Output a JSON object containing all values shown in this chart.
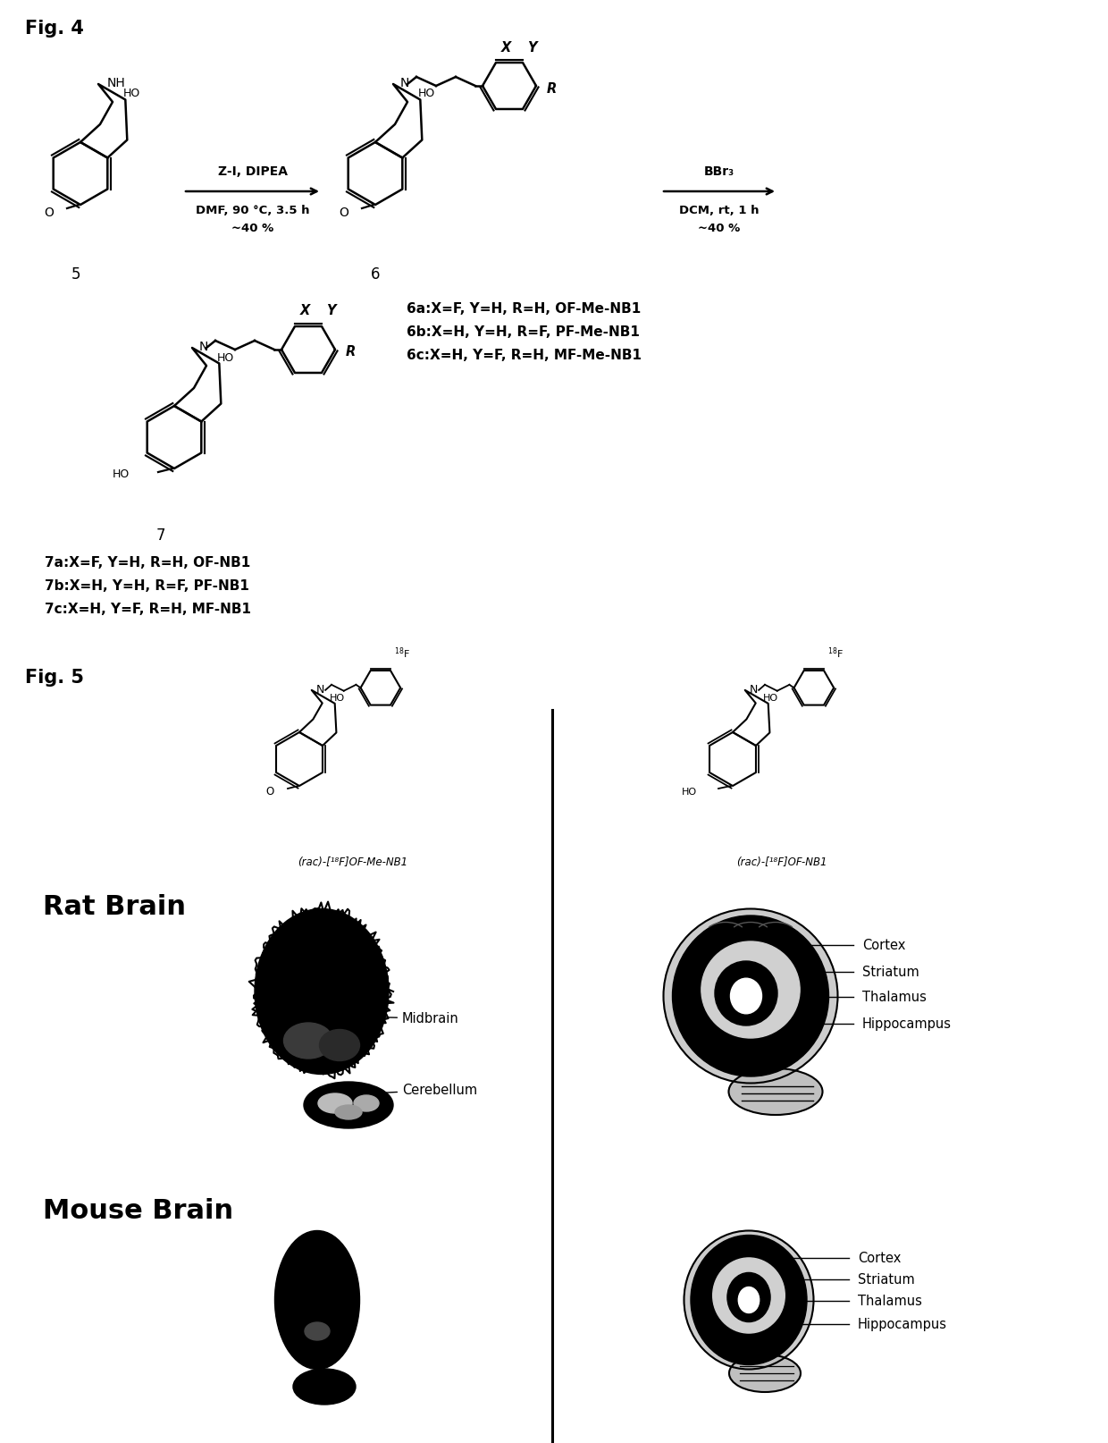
{
  "fig_label_4": "Fig. 4",
  "fig_label_5": "Fig. 5",
  "compound_6_labels": [
    "6a:X=F, Y=H, R=H, OF-Me-NB1",
    "6b:X=H, Y=H, R=F, PF-Me-NB1",
    "6c:X=H, Y=F, R=H, MF-Me-NB1"
  ],
  "compound_7_labels": [
    "7a:X=F, Y=H, R=H, OF-NB1",
    "7b:X=H, Y=H, R=F, PF-NB1",
    "7c:X=H, Y=F, R=H, MF-NB1"
  ],
  "arrow1_top": "Z-I, DIPEA",
  "arrow1_bot1": "DMF, 90 °C, 3.5 h",
  "arrow1_bot2": "~40 %",
  "arrow2_top": "BBr₃",
  "arrow2_bot1": "DCM, rt, 1 h",
  "arrow2_bot2": "~40 %",
  "compound_fig5_left": "(rac)-[¹⁸F]OF-Me-NB1",
  "compound_fig5_right": "(rac)-[¹⁸F]OF-NB1",
  "rat_brain_label": "Rat Brain",
  "mouse_brain_label": "Mouse Brain",
  "brain_labels_rat": [
    "Cortex",
    "Striatum",
    "Thalamus",
    "Hippocampus"
  ],
  "brain_labels_rat_left": [
    "Midbrain",
    "Cerebellum"
  ],
  "brain_labels_mouse": [
    "Cortex",
    "Striatum",
    "Thalamus",
    "Hippocampus"
  ],
  "background_color": "#ffffff",
  "text_color": "#000000"
}
